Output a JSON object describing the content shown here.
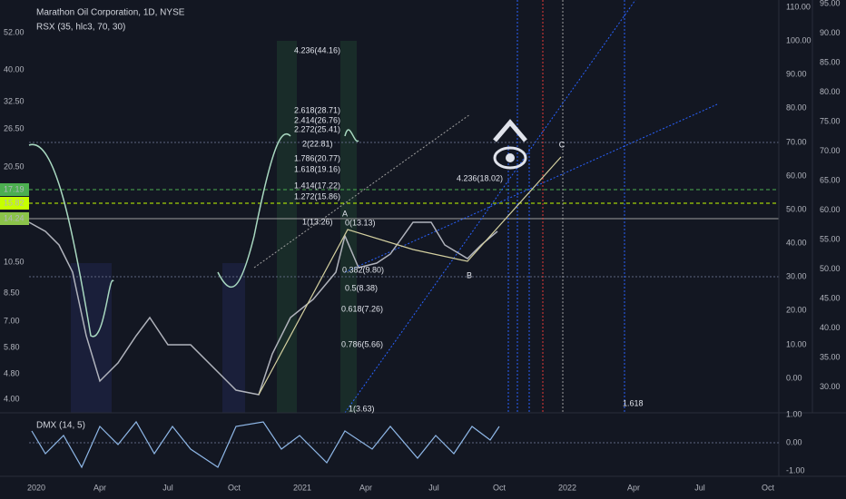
{
  "header": {
    "title": "Marathon Oil Corporation, 1D, NYSE",
    "indicator": "RSX (35, hlc3, 70, 30)",
    "lower_indicator": "DMX (14, 5)"
  },
  "price_axis": [
    "52.00",
    "40.00",
    "32.50",
    "26.50",
    "20.50",
    "17.19",
    "15.82",
    "14.24",
    "10.50",
    "8.50",
    "7.00",
    "5.80",
    "4.80",
    "4.00"
  ],
  "rsx_axis": [
    "110.00",
    "100.00",
    "90.00",
    "80.00",
    "70.00",
    "60.00",
    "50.00",
    "40.00",
    "30.00",
    "20.00",
    "10.00",
    "0.00"
  ],
  "right_axis": [
    "95.00",
    "90.00",
    "85.00",
    "80.00",
    "75.00",
    "70.00",
    "65.00",
    "60.00",
    "55.00",
    "50.00",
    "45.00",
    "40.00",
    "35.00",
    "30.00"
  ],
  "dmx_axis": [
    "1.00",
    "0.00",
    "-1.00"
  ],
  "time_axis": [
    "2020",
    "Apr",
    "Jul",
    "Oct",
    "2021",
    "Apr",
    "Jul",
    "Oct",
    "2022",
    "Apr",
    "Jul",
    "Oct"
  ],
  "fib_labels": [
    "4.236(44.16)",
    "2.618(28.71)",
    "2.414(26.76)",
    "2.272(25.41)",
    "2(22.81)",
    "1.786(20.77)",
    "1.618(19.16)",
    "1.414(17.22)",
    "1.272(15.86)",
    "1(13.26)",
    "0(13.13)",
    "0.382(9.80)",
    "0.5(8.38)",
    "0.618(7.26)",
    "0.786(5.66)",
    "1(3.63)",
    "4.236(18.02)",
    "1.618"
  ],
  "points": [
    "A",
    "B",
    "C"
  ]
}
